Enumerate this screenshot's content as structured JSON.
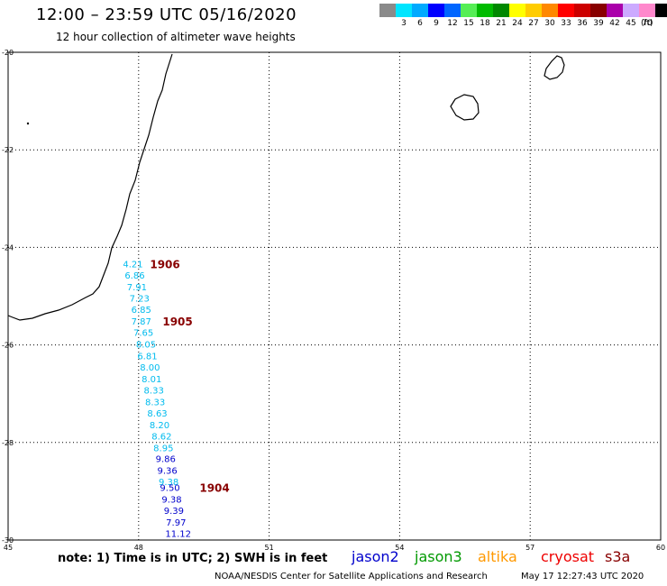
{
  "header": {
    "title": "12:00 – 23:59 UTC 05/16/2020",
    "subtitle": "12 hour collection of altimeter wave heights"
  },
  "legend": {
    "unit": "(ft)",
    "colors": [
      "#8a8a8a",
      "#00e5ff",
      "#00aaff",
      "#0000ff",
      "#0066ff",
      "#55ee55",
      "#00bb00",
      "#008800",
      "#ffff00",
      "#ffcc00",
      "#ff8800",
      "#ff0000",
      "#cc0000",
      "#880000",
      "#aa00aa",
      "#ccaaff",
      "#ff88cc",
      "#000000"
    ],
    "labels": [
      "3",
      "6",
      "9",
      "12",
      "15",
      "18",
      "21",
      "24",
      "27",
      "30",
      "33",
      "36",
      "39",
      "42",
      "45",
      "70"
    ]
  },
  "axes": {
    "x_ticks": [
      "45",
      "48",
      "51",
      "54",
      "57",
      "60"
    ],
    "y_ticks": [
      "-20",
      "-22",
      "-24",
      "-26",
      "-28",
      "-30"
    ],
    "lon_range": [
      45,
      60
    ],
    "lat_range": [
      -30,
      -20
    ]
  },
  "chart_data": {
    "type": "scatter",
    "x_unit": "longitude",
    "y_unit": "latitude",
    "observations": [
      {
        "lon": 47.87,
        "lat": -24.35,
        "swh": "4.21",
        "color": "#00bbee"
      },
      {
        "lon": 47.91,
        "lat": -24.58,
        "swh": "6.86",
        "color": "#00bbee"
      },
      {
        "lon": 47.96,
        "lat": -24.82,
        "swh": "7.91",
        "color": "#00bbee"
      },
      {
        "lon": 48.02,
        "lat": -25.06,
        "swh": "7.23",
        "color": "#00bbee"
      },
      {
        "lon": 48.06,
        "lat": -25.29,
        "swh": "6.85",
        "color": "#00bbee"
      },
      {
        "lon": 48.06,
        "lat": -25.53,
        "swh": "7.87",
        "color": "#00bbee"
      },
      {
        "lon": 48.11,
        "lat": -25.76,
        "swh": "7.65",
        "color": "#00bbee"
      },
      {
        "lon": 48.17,
        "lat": -26.0,
        "swh": "8.05",
        "color": "#00bbee"
      },
      {
        "lon": 48.2,
        "lat": -26.24,
        "swh": "6.81",
        "color": "#00bbee"
      },
      {
        "lon": 48.26,
        "lat": -26.47,
        "swh": "8.00",
        "color": "#00bbee"
      },
      {
        "lon": 48.3,
        "lat": -26.71,
        "swh": "8.01",
        "color": "#00bbee"
      },
      {
        "lon": 48.35,
        "lat": -26.94,
        "swh": "8.33",
        "color": "#00bbee"
      },
      {
        "lon": 48.38,
        "lat": -27.18,
        "swh": "8.33",
        "color": "#00bbee"
      },
      {
        "lon": 48.43,
        "lat": -27.41,
        "swh": "8.63",
        "color": "#00bbee"
      },
      {
        "lon": 48.48,
        "lat": -27.65,
        "swh": "8.20",
        "color": "#00bbee"
      },
      {
        "lon": 48.53,
        "lat": -27.88,
        "swh": "8.62",
        "color": "#00bbee"
      },
      {
        "lon": 48.57,
        "lat": -28.12,
        "swh": "8.95",
        "color": "#00bbee"
      },
      {
        "lon": 48.62,
        "lat": -28.35,
        "swh": "9.86",
        "color": "#0000cc"
      },
      {
        "lon": 48.66,
        "lat": -28.59,
        "swh": "9.36",
        "color": "#0000cc"
      },
      {
        "lon": 48.69,
        "lat": -28.82,
        "swh": "9.38",
        "color": "#00bbee"
      },
      {
        "lon": 48.72,
        "lat": -28.94,
        "swh": "9.50",
        "color": "#0000cc"
      },
      {
        "lon": 48.76,
        "lat": -29.18,
        "swh": "9.38",
        "color": "#0000cc"
      },
      {
        "lon": 48.81,
        "lat": -29.41,
        "swh": "9.39",
        "color": "#0000cc"
      },
      {
        "lon": 48.86,
        "lat": -29.65,
        "swh": "7.97",
        "color": "#0000cc"
      },
      {
        "lon": 48.91,
        "lat": -29.88,
        "swh": "11.12",
        "color": "#0000cc"
      }
    ],
    "time_labels": [
      {
        "lon": 48.26,
        "lat": -24.35,
        "text": "1906"
      },
      {
        "lon": 48.55,
        "lat": -25.53,
        "text": "1905"
      },
      {
        "lon": 49.4,
        "lat": -28.94,
        "text": "1904"
      }
    ],
    "time_label_color": "#880000"
  },
  "footer": {
    "note": "note: 1) Time is in UTC; 2) SWH is in feet",
    "satellites": [
      {
        "name": "jason2",
        "color": "#0000cc"
      },
      {
        "name": "jason3",
        "color": "#009900"
      },
      {
        "name": "altika",
        "color": "#ff9900"
      },
      {
        "name": "cryosat",
        "color": "#ee0000"
      },
      {
        "name": "s3a",
        "color": "#880000"
      }
    ],
    "credit": "NOAA/NESDIS Center for Satellite Applications and Research",
    "timestamp": "May 17 12:27:43 UTC 2020"
  }
}
